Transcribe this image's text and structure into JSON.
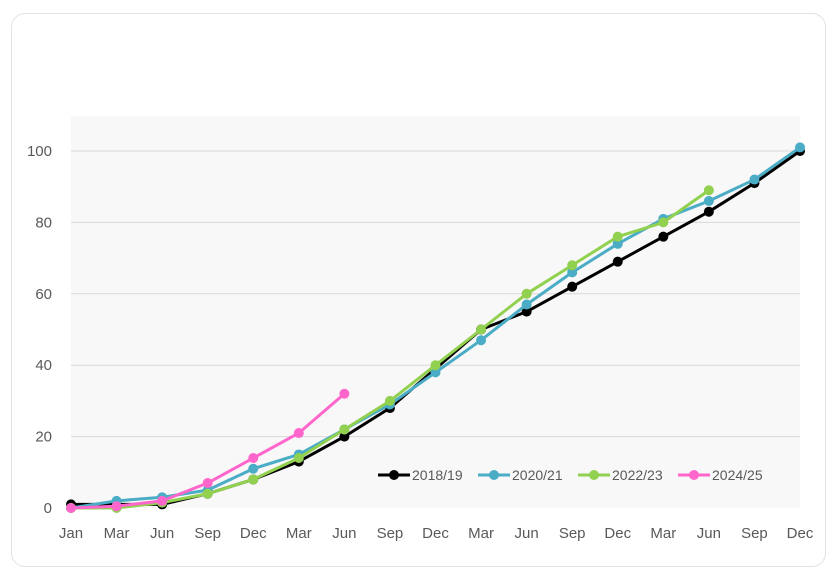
{
  "chart_data": {
    "type": "line",
    "title": "",
    "xlabel": "",
    "ylabel": "",
    "ylim": [
      0,
      110
    ],
    "yticks": [
      0,
      20,
      40,
      60,
      80,
      100
    ],
    "grid": true,
    "legend_position": "inside-bottom-right",
    "categories": [
      "Jan",
      "Mar",
      "Jun",
      "Sep",
      "Dec",
      "Mar",
      "Jun",
      "Sep",
      "Dec",
      "Mar",
      "Jun",
      "Sep",
      "Dec",
      "Mar",
      "Jun",
      "Sep",
      "Dec"
    ],
    "series": [
      {
        "name": "2018/19",
        "color": "#000000",
        "values": [
          1,
          1,
          1,
          4,
          8,
          13,
          20,
          28,
          39,
          50,
          55,
          62,
          69,
          76,
          83,
          91,
          100
        ]
      },
      {
        "name": "2020/21",
        "color": "#4bacc6",
        "values": [
          0,
          2,
          3,
          5,
          11,
          15,
          22,
          29,
          38,
          47,
          57,
          66,
          74,
          81,
          86,
          92,
          101
        ]
      },
      {
        "name": "2022/23",
        "color": "#92d050",
        "values": [
          0,
          0,
          1.5,
          4,
          8,
          14,
          22,
          30,
          40,
          50,
          60,
          68,
          76,
          80,
          89
        ]
      },
      {
        "name": "2024/25",
        "color": "#ff66cc",
        "values": [
          0,
          0.5,
          2,
          7,
          14,
          21,
          32
        ]
      }
    ]
  }
}
